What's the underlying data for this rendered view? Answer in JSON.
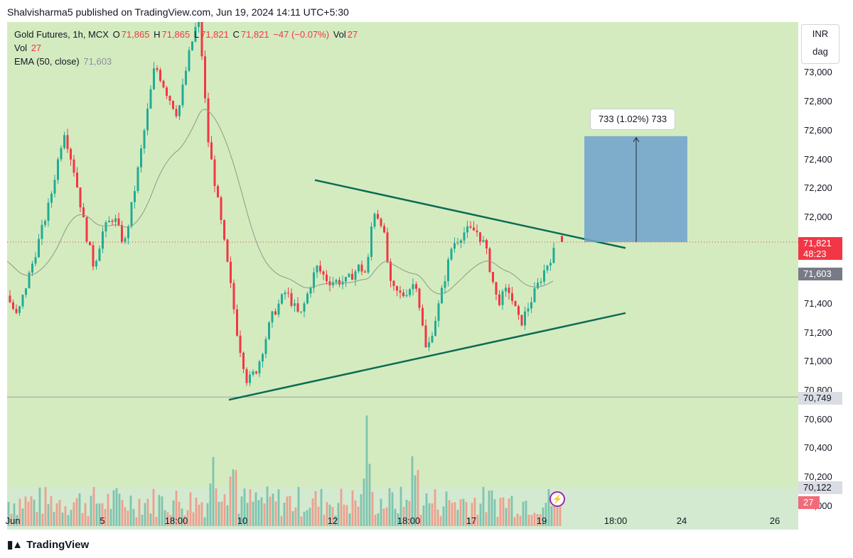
{
  "header": "Shalvisharma5 published on TradingView.com, Jun 19, 2024 14:11 UTC+5:30",
  "legend": {
    "symbol": "Gold Futures, 1h, MCX",
    "o_label": "O",
    "o_value": "71,865",
    "h_label": "H",
    "h_value": "71,865",
    "l_label": "L",
    "l_value": "71,821",
    "c_label": "C",
    "c_value": "71,821",
    "change": "−47 (−0.07%)",
    "vol_label": "Vol",
    "vol_value": "27",
    "vol_row_label": "Vol",
    "vol_row_value": "27",
    "ema_label": "EMA (50, close)",
    "ema_value": "71,603"
  },
  "currency": {
    "unit": "INR",
    "period": "dag"
  },
  "y_axis_labels": [
    "73,000",
    "72,800",
    "72,600",
    "72,400",
    "72,200",
    "72,000",
    "71,400",
    "71,200",
    "71,000",
    "70,600",
    "70,400",
    "70,200"
  ],
  "y_axis_partial": {
    "l70800": "70,800",
    "l70000": "70,000"
  },
  "price_tags": {
    "last": "71,821",
    "countdown": "48:23",
    "ema": "71,603",
    "line_low": "70,749",
    "volume_ref": "70,122",
    "volume": "27"
  },
  "x_axis_labels": [
    "Jun",
    "5",
    "18:00",
    "10",
    "12",
    "18:00",
    "17",
    "19",
    "18:00",
    "24",
    "26"
  ],
  "measure_label": "733 (1.02%) 733",
  "footer": "TradingView",
  "colors": {
    "up": "#22ab94",
    "down": "#f23645",
    "background": "#d4ebc0",
    "trendline": "#0e6b55",
    "measure": "#6fa2cc"
  },
  "chart_data": {
    "type": "candlestick",
    "title": "Gold Futures, 1h, MCX",
    "ylim": [
      69950,
      73250
    ],
    "x": [
      "Jun",
      "5",
      "18:00",
      "10",
      "12",
      "18:00",
      "17",
      "19",
      "18:00",
      "24",
      "26"
    ],
    "candles_approx": [
      {
        "t": "Jun",
        "o": 71450,
        "h": 71550,
        "l": 71300,
        "c": 71480
      },
      {
        "t": "5",
        "o": 71900,
        "h": 72100,
        "l": 71700,
        "c": 71800
      },
      {
        "t": "18:00",
        "o": 72900,
        "h": 73100,
        "l": 72700,
        "c": 72800
      },
      {
        "t": "10",
        "o": 71000,
        "h": 71100,
        "l": 70750,
        "c": 70900
      },
      {
        "t": "12",
        "o": 71600,
        "h": 71700,
        "l": 71450,
        "c": 71550
      },
      {
        "t": "18:00",
        "o": 71500,
        "h": 71600,
        "l": 71000,
        "c": 71200
      },
      {
        "t": "17",
        "o": 71850,
        "h": 72050,
        "l": 71700,
        "c": 71750
      },
      {
        "t": "19",
        "o": 71865,
        "h": 71865,
        "l": 71821,
        "c": 71821
      }
    ],
    "ema50": 71603,
    "last_close": 71821,
    "triangle": {
      "upper": [
        {
          "t": "12",
          "y": 72250
        },
        {
          "t": "19",
          "y": 71780
        }
      ],
      "lower": [
        {
          "t": "10",
          "y": 70730
        },
        {
          "t": "19",
          "y": 71330
        }
      ]
    },
    "target_move": {
      "points": 733,
      "percent": 1.02,
      "from": 71821,
      "to": 72554
    }
  }
}
